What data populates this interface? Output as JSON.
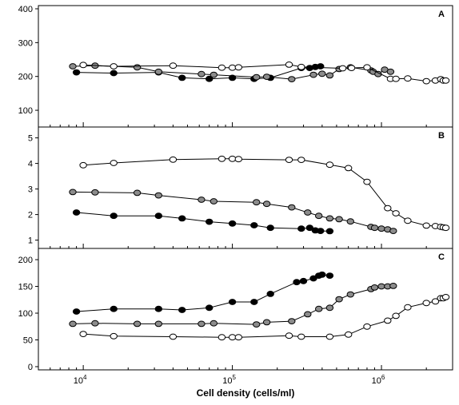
{
  "chart_data": {
    "type": "scatter",
    "xlabel": "Cell density (cells/ml)",
    "x_scale": "log",
    "xlim": [
      5000,
      3000000
    ],
    "x_ticks": [
      10000,
      100000,
      1000000
    ],
    "x_tick_labels": [
      {
        "base": "10",
        "exp": "4"
      },
      {
        "base": "10",
        "exp": "5"
      },
      {
        "base": "10",
        "exp": "6"
      }
    ],
    "series_colors": {
      "black": "#000000",
      "gray": "#8c8c8c",
      "white": "#ffffff"
    },
    "panels": [
      {
        "label": "A",
        "ylim": [
          60,
          400
        ],
        "yticks": [
          100,
          200,
          300,
          400
        ],
        "series": [
          {
            "marker": "black",
            "points": [
              [
                9000,
                212
              ],
              [
                16000,
                210
              ],
              [
                32000,
                212
              ],
              [
                46000,
                196
              ],
              [
                70000,
                193
              ],
              [
                100000,
                196
              ],
              [
                140000,
                193
              ],
              [
                180000,
                196
              ],
              [
                290000,
                225
              ],
              [
                330000,
                225
              ],
              [
                360000,
                228
              ],
              [
                390000,
                230
              ]
            ]
          },
          {
            "marker": "gray",
            "points": [
              [
                8500,
                230
              ],
              [
                12000,
                232
              ],
              [
                23000,
                227
              ],
              [
                32000,
                214
              ],
              [
                62000,
                207
              ],
              [
                75000,
                205
              ],
              [
                145000,
                198
              ],
              [
                170000,
                199
              ],
              [
                250000,
                192
              ],
              [
                350000,
                205
              ],
              [
                400000,
                208
              ],
              [
                450000,
                203
              ],
              [
                520000,
                222
              ],
              [
                620000,
                227
              ],
              [
                850000,
                218
              ],
              [
                880000,
                214
              ],
              [
                950000,
                207
              ],
              [
                1050000,
                220
              ],
              [
                1150000,
                214
              ]
            ]
          },
          {
            "marker": "white",
            "points": [
              [
                10000,
                234
              ],
              [
                16000,
                230
              ],
              [
                40000,
                232
              ],
              [
                85000,
                226
              ],
              [
                100000,
                226
              ],
              [
                110000,
                227
              ],
              [
                240000,
                235
              ],
              [
                290000,
                228
              ],
              [
                550000,
                224
              ],
              [
                630000,
                225
              ],
              [
                800000,
                227
              ],
              [
                1150000,
                193
              ],
              [
                1250000,
                193
              ],
              [
                1500000,
                194
              ],
              [
                2000000,
                186
              ],
              [
                2300000,
                188
              ],
              [
                2500000,
                192
              ],
              [
                2600000,
                188
              ],
              [
                2700000,
                188
              ]
            ]
          }
        ]
      },
      {
        "label": "B",
        "ylim": [
          0.8,
          5.3
        ],
        "yticks": [
          1,
          2,
          3,
          4,
          5
        ],
        "series": [
          {
            "marker": "black",
            "points": [
              [
                9000,
                2.08
              ],
              [
                16000,
                1.95
              ],
              [
                32000,
                1.95
              ],
              [
                46000,
                1.85
              ],
              [
                70000,
                1.72
              ],
              [
                100000,
                1.65
              ],
              [
                140000,
                1.58
              ],
              [
                180000,
                1.48
              ],
              [
                290000,
                1.45
              ],
              [
                330000,
                1.48
              ],
              [
                360000,
                1.38
              ],
              [
                390000,
                1.36
              ],
              [
                450000,
                1.35
              ]
            ]
          },
          {
            "marker": "gray",
            "points": [
              [
                8500,
                2.88
              ],
              [
                12000,
                2.87
              ],
              [
                23000,
                2.85
              ],
              [
                32000,
                2.75
              ],
              [
                62000,
                2.58
              ],
              [
                75000,
                2.52
              ],
              [
                145000,
                2.48
              ],
              [
                170000,
                2.42
              ],
              [
                250000,
                2.28
              ],
              [
                320000,
                2.08
              ],
              [
                380000,
                1.95
              ],
              [
                450000,
                1.85
              ],
              [
                520000,
                1.82
              ],
              [
                620000,
                1.73
              ],
              [
                850000,
                1.52
              ],
              [
                900000,
                1.48
              ],
              [
                1000000,
                1.45
              ],
              [
                1100000,
                1.42
              ],
              [
                1200000,
                1.36
              ]
            ]
          },
          {
            "marker": "white",
            "points": [
              [
                10000,
                3.93
              ],
              [
                16000,
                4.02
              ],
              [
                40000,
                4.15
              ],
              [
                85000,
                4.18
              ],
              [
                100000,
                4.18
              ],
              [
                110000,
                4.17
              ],
              [
                240000,
                4.14
              ],
              [
                290000,
                4.14
              ],
              [
                450000,
                3.95
              ],
              [
                600000,
                3.82
              ],
              [
                800000,
                3.28
              ],
              [
                1100000,
                2.25
              ],
              [
                1250000,
                2.05
              ],
              [
                1500000,
                1.76
              ],
              [
                2000000,
                1.57
              ],
              [
                2300000,
                1.55
              ],
              [
                2500000,
                1.52
              ],
              [
                2600000,
                1.5
              ],
              [
                2700000,
                1.48
              ]
            ]
          }
        ]
      },
      {
        "label": "C",
        "ylim": [
          0,
          215
        ],
        "yticks": [
          0,
          50,
          100,
          150,
          200
        ],
        "series": [
          {
            "marker": "black",
            "points": [
              [
                9000,
                103
              ],
              [
                16000,
                108
              ],
              [
                32000,
                108
              ],
              [
                46000,
                106
              ],
              [
                70000,
                110
              ],
              [
                100000,
                121
              ],
              [
                140000,
                121
              ],
              [
                180000,
                136
              ],
              [
                270000,
                158
              ],
              [
                300000,
                160
              ],
              [
                350000,
                165
              ],
              [
                380000,
                170
              ],
              [
                400000,
                172
              ],
              [
                450000,
                170
              ]
            ]
          },
          {
            "marker": "gray",
            "points": [
              [
                8500,
                80
              ],
              [
                12000,
                81
              ],
              [
                23000,
                80
              ],
              [
                32000,
                80
              ],
              [
                62000,
                80
              ],
              [
                75000,
                81
              ],
              [
                145000,
                79
              ],
              [
                170000,
                83
              ],
              [
                250000,
                85
              ],
              [
                320000,
                98
              ],
              [
                380000,
                108
              ],
              [
                450000,
                110
              ],
              [
                520000,
                126
              ],
              [
                620000,
                135
              ],
              [
                850000,
                145
              ],
              [
                900000,
                148
              ],
              [
                1000000,
                150
              ],
              [
                1100000,
                150
              ],
              [
                1200000,
                151
              ]
            ]
          },
          {
            "marker": "white",
            "points": [
              [
                10000,
                61
              ],
              [
                16000,
                57
              ],
              [
                40000,
                56
              ],
              [
                85000,
                55
              ],
              [
                100000,
                55
              ],
              [
                110000,
                55
              ],
              [
                240000,
                58
              ],
              [
                290000,
                56
              ],
              [
                450000,
                56
              ],
              [
                600000,
                60
              ],
              [
                800000,
                75
              ],
              [
                1100000,
                86
              ],
              [
                1250000,
                95
              ],
              [
                1500000,
                111
              ],
              [
                2000000,
                119
              ],
              [
                2300000,
                122
              ],
              [
                2500000,
                128
              ],
              [
                2600000,
                128
              ],
              [
                2700000,
                130
              ]
            ]
          }
        ]
      }
    ]
  }
}
